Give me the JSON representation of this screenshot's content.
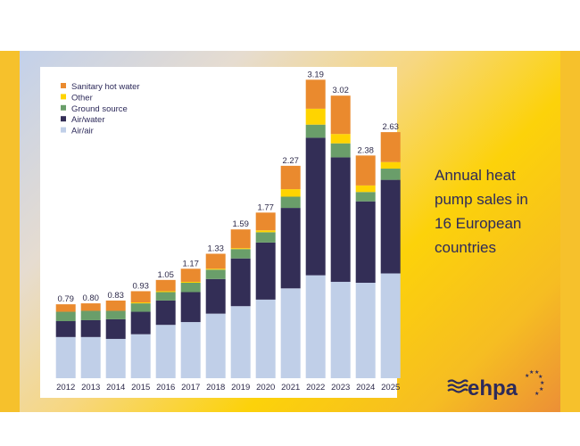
{
  "title_lines": [
    "Annual heat",
    "pump sales in",
    "16 European",
    "countries"
  ],
  "logo_text": "ehpa",
  "chart_data": {
    "type": "bar",
    "stacked": true,
    "categories": [
      "2012",
      "2013",
      "2014",
      "2015",
      "2016",
      "2017",
      "2018",
      "2019",
      "2020",
      "2021",
      "2022",
      "2023",
      "2024",
      "2025"
    ],
    "totals": [
      "0.79",
      "0.80",
      "0.83",
      "0.93",
      "1.05",
      "1.17",
      "1.33",
      "1.59",
      "1.77",
      "2.27",
      "3.19",
      "3.02",
      "2.38",
      "2.63"
    ],
    "series": [
      {
        "name": "Air/air",
        "color": "#c0cfe8",
        "values": [
          0.44,
          0.44,
          0.42,
          0.47,
          0.57,
          0.6,
          0.69,
          0.77,
          0.84,
          0.96,
          1.1,
          1.03,
          1.02,
          1.12
        ]
      },
      {
        "name": "Air/water",
        "color": "#332e56",
        "values": [
          0.17,
          0.18,
          0.21,
          0.24,
          0.26,
          0.32,
          0.37,
          0.51,
          0.61,
          0.86,
          1.47,
          1.33,
          0.87,
          1.0
        ]
      },
      {
        "name": "Ground source",
        "color": "#6a9e6a",
        "values": [
          0.1,
          0.1,
          0.09,
          0.09,
          0.09,
          0.1,
          0.1,
          0.1,
          0.11,
          0.12,
          0.14,
          0.15,
          0.1,
          0.12
        ]
      },
      {
        "name": "Other",
        "color": "#ffd400",
        "values": [
          0.0,
          0.0,
          0.0,
          0.01,
          0.01,
          0.01,
          0.01,
          0.01,
          0.02,
          0.08,
          0.17,
          0.1,
          0.07,
          0.07
        ]
      },
      {
        "name": "Sanitary hot water",
        "color": "#ea8a2e",
        "values": [
          0.08,
          0.08,
          0.11,
          0.12,
          0.12,
          0.14,
          0.16,
          0.2,
          0.19,
          0.25,
          0.31,
          0.41,
          0.32,
          0.32
        ]
      }
    ],
    "legend_order": [
      "Sanitary hot water",
      "Other",
      "Ground source",
      "Air/water",
      "Air/air"
    ],
    "legend_position": "top-left",
    "ylim": [
      0,
      3.3
    ],
    "grid": false,
    "xlabel": "",
    "ylabel": ""
  }
}
